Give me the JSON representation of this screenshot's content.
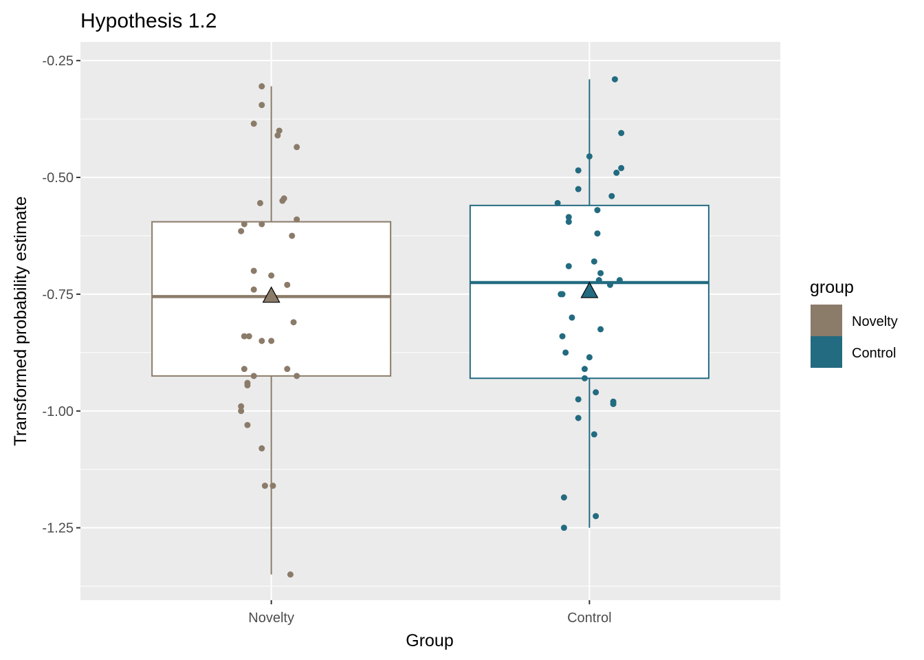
{
  "chart_data": {
    "type": "boxplot",
    "title": "Hypothesis 1.2",
    "xlabel": "Group",
    "ylabel": "Transformed probability estimate",
    "categories": [
      "Novelty",
      "Control"
    ],
    "ylim": [
      -1.405,
      -0.21
    ],
    "yticks": [
      -0.25,
      -0.5,
      -0.75,
      -1.0,
      -1.25
    ],
    "ytick_labels": [
      "-0.25",
      "-0.50",
      "-0.75",
      "-1.00",
      "-1.25"
    ],
    "grid": true,
    "legend": {
      "title": "group",
      "position": "right",
      "entries": [
        {
          "label": "Novelty",
          "color": "#8b7b69"
        },
        {
          "label": "Control",
          "color": "#226b80"
        }
      ]
    },
    "series": [
      {
        "group": "Novelty",
        "color": "#8b7b69",
        "box": {
          "min": -1.35,
          "q1": -0.925,
          "median": -0.755,
          "q3": -0.595,
          "max": -0.305
        },
        "mean": -0.755,
        "points": [
          {
            "x": -0.03,
            "y": -0.305
          },
          {
            "x": -0.03,
            "y": -0.345
          },
          {
            "x": -0.055,
            "y": -0.385
          },
          {
            "x": 0.025,
            "y": -0.4
          },
          {
            "x": 0.02,
            "y": -0.41
          },
          {
            "x": 0.08,
            "y": -0.435
          },
          {
            "x": -0.035,
            "y": -0.555
          },
          {
            "x": 0.035,
            "y": -0.55
          },
          {
            "x": 0.04,
            "y": -0.545
          },
          {
            "x": 0.08,
            "y": -0.59
          },
          {
            "x": -0.085,
            "y": -0.6
          },
          {
            "x": -0.03,
            "y": -0.6
          },
          {
            "x": -0.095,
            "y": -0.615
          },
          {
            "x": 0.065,
            "y": -0.625
          },
          {
            "x": -0.055,
            "y": -0.7
          },
          {
            "x": 0.0,
            "y": -0.71
          },
          {
            "x": 0.05,
            "y": -0.73
          },
          {
            "x": -0.055,
            "y": -0.74
          },
          {
            "x": 0.07,
            "y": -0.81
          },
          {
            "x": -0.085,
            "y": -0.84
          },
          {
            "x": -0.07,
            "y": -0.84
          },
          {
            "x": -0.03,
            "y": -0.85
          },
          {
            "x": 0.0,
            "y": -0.85
          },
          {
            "x": -0.085,
            "y": -0.91
          },
          {
            "x": 0.05,
            "y": -0.91
          },
          {
            "x": -0.055,
            "y": -0.925
          },
          {
            "x": 0.08,
            "y": -0.925
          },
          {
            "x": -0.075,
            "y": -0.94
          },
          {
            "x": -0.075,
            "y": -0.945
          },
          {
            "x": -0.095,
            "y": -0.99
          },
          {
            "x": -0.095,
            "y": -1.0
          },
          {
            "x": -0.075,
            "y": -1.03
          },
          {
            "x": -0.03,
            "y": -1.08
          },
          {
            "x": -0.02,
            "y": -1.16
          },
          {
            "x": 0.005,
            "y": -1.16
          },
          {
            "x": 0.06,
            "y": -1.35
          }
        ]
      },
      {
        "group": "Control",
        "color": "#226b80",
        "box": {
          "min": -1.25,
          "q1": -0.93,
          "median": -0.725,
          "q3": -0.56,
          "max": -0.29
        },
        "mean": -0.745,
        "points": [
          {
            "x": 0.08,
            "y": -0.29
          },
          {
            "x": 0.1,
            "y": -0.405
          },
          {
            "x": 0.0,
            "y": -0.455
          },
          {
            "x": 0.1,
            "y": -0.48
          },
          {
            "x": 0.085,
            "y": -0.49
          },
          {
            "x": -0.035,
            "y": -0.485
          },
          {
            "x": -0.035,
            "y": -0.525
          },
          {
            "x": 0.07,
            "y": -0.54
          },
          {
            "x": -0.1,
            "y": -0.555
          },
          {
            "x": 0.025,
            "y": -0.57
          },
          {
            "x": -0.065,
            "y": -0.585
          },
          {
            "x": -0.065,
            "y": -0.595
          },
          {
            "x": 0.025,
            "y": -0.62
          },
          {
            "x": -0.065,
            "y": -0.69
          },
          {
            "x": 0.015,
            "y": -0.68
          },
          {
            "x": 0.035,
            "y": -0.705
          },
          {
            "x": 0.03,
            "y": -0.72
          },
          {
            "x": 0.095,
            "y": -0.72
          },
          {
            "x": 0.065,
            "y": -0.73
          },
          {
            "x": -0.09,
            "y": -0.75
          },
          {
            "x": -0.085,
            "y": -0.75
          },
          {
            "x": -0.055,
            "y": -0.8
          },
          {
            "x": 0.035,
            "y": -0.825
          },
          {
            "x": -0.085,
            "y": -0.84
          },
          {
            "x": -0.075,
            "y": -0.875
          },
          {
            "x": 0.0,
            "y": -0.885
          },
          {
            "x": -0.015,
            "y": -0.91
          },
          {
            "x": -0.015,
            "y": -0.93
          },
          {
            "x": 0.02,
            "y": -0.96
          },
          {
            "x": -0.035,
            "y": -0.975
          },
          {
            "x": 0.075,
            "y": -0.98
          },
          {
            "x": 0.075,
            "y": -0.985
          },
          {
            "x": -0.035,
            "y": -1.015
          },
          {
            "x": 0.015,
            "y": -1.05
          },
          {
            "x": -0.08,
            "y": -1.185
          },
          {
            "x": 0.02,
            "y": -1.225
          },
          {
            "x": -0.08,
            "y": -1.25
          }
        ]
      }
    ]
  }
}
